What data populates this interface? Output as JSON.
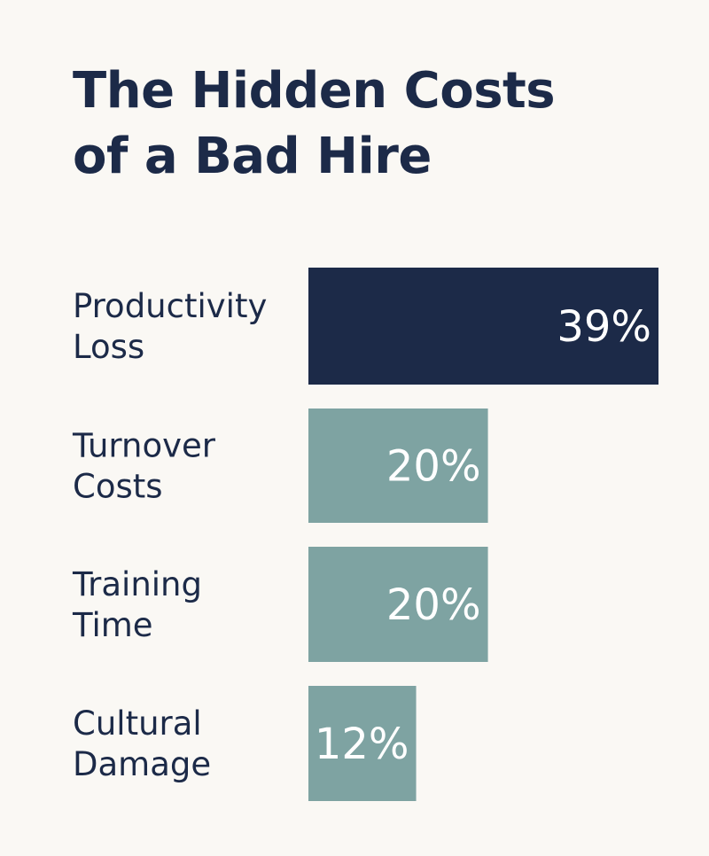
{
  "title_lines": [
    "The Hidden Costs",
    "of a Bad Hire"
  ],
  "colors": {
    "background": "#faf8f4",
    "title": "#1c2a48",
    "highlight_bar": "#1c2a48",
    "bar": "#7ea3a2",
    "value_text": "#ffffff"
  },
  "chart_data": {
    "type": "bar",
    "orientation": "horizontal",
    "title": "The Hidden Costs of a Bad Hire",
    "categories": [
      "Productivity Loss",
      "Turnover Costs",
      "Training Time",
      "Cultural Damage"
    ],
    "category_lines": [
      [
        "Productivity",
        "Loss"
      ],
      [
        "Turnover",
        "Costs"
      ],
      [
        "Training",
        "Time"
      ],
      [
        "Cultural",
        "Damage"
      ]
    ],
    "values": [
      39,
      20,
      20,
      12
    ],
    "value_labels": [
      "39%",
      "20%",
      "20%",
      "12%"
    ],
    "unit": "%",
    "xlim": [
      0,
      39
    ],
    "highlight_index": 0,
    "grid": false,
    "legend": "none"
  }
}
